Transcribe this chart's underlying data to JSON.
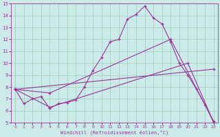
{
  "xlabel": "Windchill (Refroidissement éolien,°C)",
  "bg_color": "#cceae7",
  "line_color": "#993399",
  "grid_color": "#99ccbb",
  "xlim": [
    -0.5,
    23.5
  ],
  "ylim": [
    5,
    15
  ],
  "xticks": [
    0,
    1,
    2,
    3,
    4,
    5,
    6,
    7,
    8,
    9,
    10,
    11,
    12,
    13,
    14,
    15,
    16,
    17,
    18,
    19,
    20,
    21,
    22,
    23
  ],
  "yticks": [
    5,
    6,
    7,
    8,
    9,
    10,
    11,
    12,
    13,
    14,
    15
  ],
  "line1_x": [
    0,
    1,
    2,
    3,
    4,
    5,
    6,
    7,
    8,
    9,
    10,
    11,
    12,
    13,
    14,
    15,
    16,
    17,
    18,
    19,
    20,
    21,
    22,
    23
  ],
  "line1_y": [
    7.8,
    6.6,
    7.0,
    7.2,
    6.2,
    6.6,
    6.7,
    6.9,
    8.0,
    9.4,
    10.5,
    11.8,
    12.0,
    13.7,
    14.1,
    14.8,
    13.8,
    13.3,
    11.8,
    10.0,
    9.0,
    7.8,
    6.5,
    5.0
  ],
  "line2_x": [
    0,
    4,
    20,
    23
  ],
  "line2_y": [
    7.8,
    6.3,
    10.0,
    5.0
  ],
  "line3_x": [
    0,
    4,
    18,
    23
  ],
  "line3_y": [
    7.8,
    7.5,
    12.0,
    5.1
  ],
  "line4_x": [
    0,
    23
  ],
  "line4_y": [
    7.8,
    9.5
  ]
}
